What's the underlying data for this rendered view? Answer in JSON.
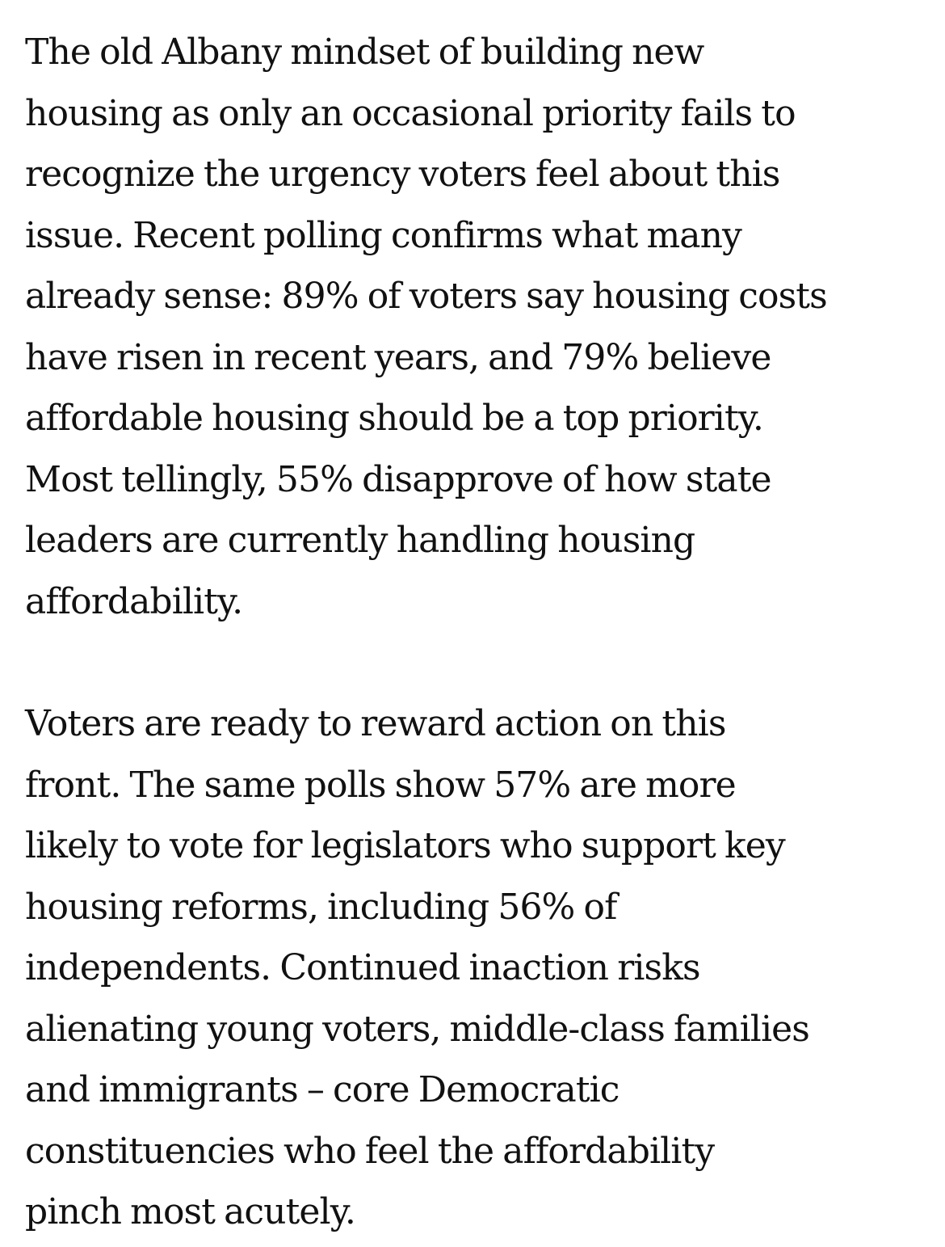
{
  "article": {
    "paragraphs": [
      {
        "lines": [
          "The old Albany mindset of building new",
          "housing as only an occasional priority fails to",
          "recognize the urgency voters feel about this",
          "issue. Recent polling confirms what many",
          "already sense: 89% of voters say housing costs",
          "have risen in recent years, and 79% believe",
          "affordable housing should be a top priority.",
          "Most tellingly, 55% disapprove of how state",
          "leaders are currently handling housing",
          "affordability."
        ]
      },
      {
        "lines": [
          "Voters are ready to reward action on this",
          "front. The same polls show 57% are more",
          "likely to vote for legislators who support key",
          "housing reforms, including 56% of",
          "independents. Continued inaction risks",
          "alienating young voters, middle-class families",
          "and immigrants – core Democratic",
          "constituencies who feel the affordability",
          "pinch most acutely."
        ]
      }
    ]
  }
}
